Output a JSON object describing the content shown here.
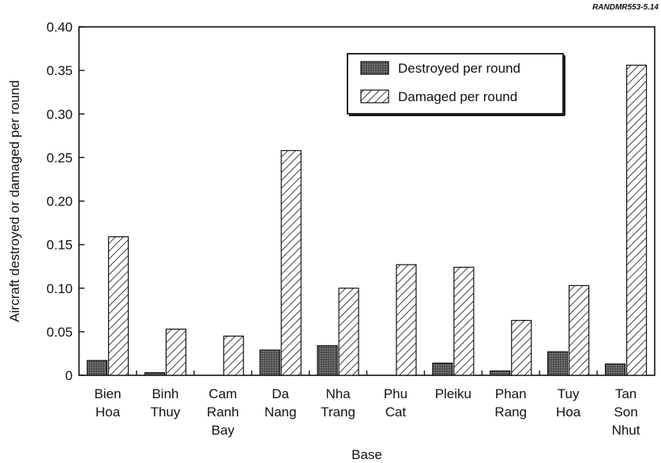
{
  "source_label": "RANDMR553-5.14",
  "chart_data": {
    "type": "bar",
    "xlabel": "Base",
    "ylabel": "Aircraft destroyed or damaged per round",
    "ylim": [
      0,
      0.4
    ],
    "yticks": [
      "0",
      "0.05",
      "0.10",
      "0.15",
      "0.20",
      "0.25",
      "0.30",
      "0.35",
      "0.40"
    ],
    "ytick_values": [
      0,
      0.05,
      0.1,
      0.15,
      0.2,
      0.25,
      0.3,
      0.35,
      0.4
    ],
    "categories": [
      [
        "Bien",
        "Hoa"
      ],
      [
        "Binh",
        "Thuy"
      ],
      [
        "Cam",
        "Ranh",
        "Bay"
      ],
      [
        "Da",
        "Nang"
      ],
      [
        "Nha",
        "Trang"
      ],
      [
        "Phu",
        "Cat"
      ],
      [
        "Pleiku"
      ],
      [
        "Phan",
        "Rang"
      ],
      [
        "Tuy",
        "Hoa"
      ],
      [
        "Tan",
        "Son",
        "Nhut"
      ]
    ],
    "legend_position": "top-right",
    "series": [
      {
        "name": "Destroyed per round",
        "pattern": "dark-stipple",
        "values": [
          0.017,
          0.003,
          0,
          0.029,
          0.034,
          0,
          0.014,
          0.005,
          0.027,
          0.013
        ]
      },
      {
        "name": "Damaged per round",
        "pattern": "diagonal-hatch",
        "values": [
          0.159,
          0.053,
          0.045,
          0.258,
          0.1,
          0.127,
          0.124,
          0.063,
          0.103,
          0.356
        ]
      }
    ]
  }
}
